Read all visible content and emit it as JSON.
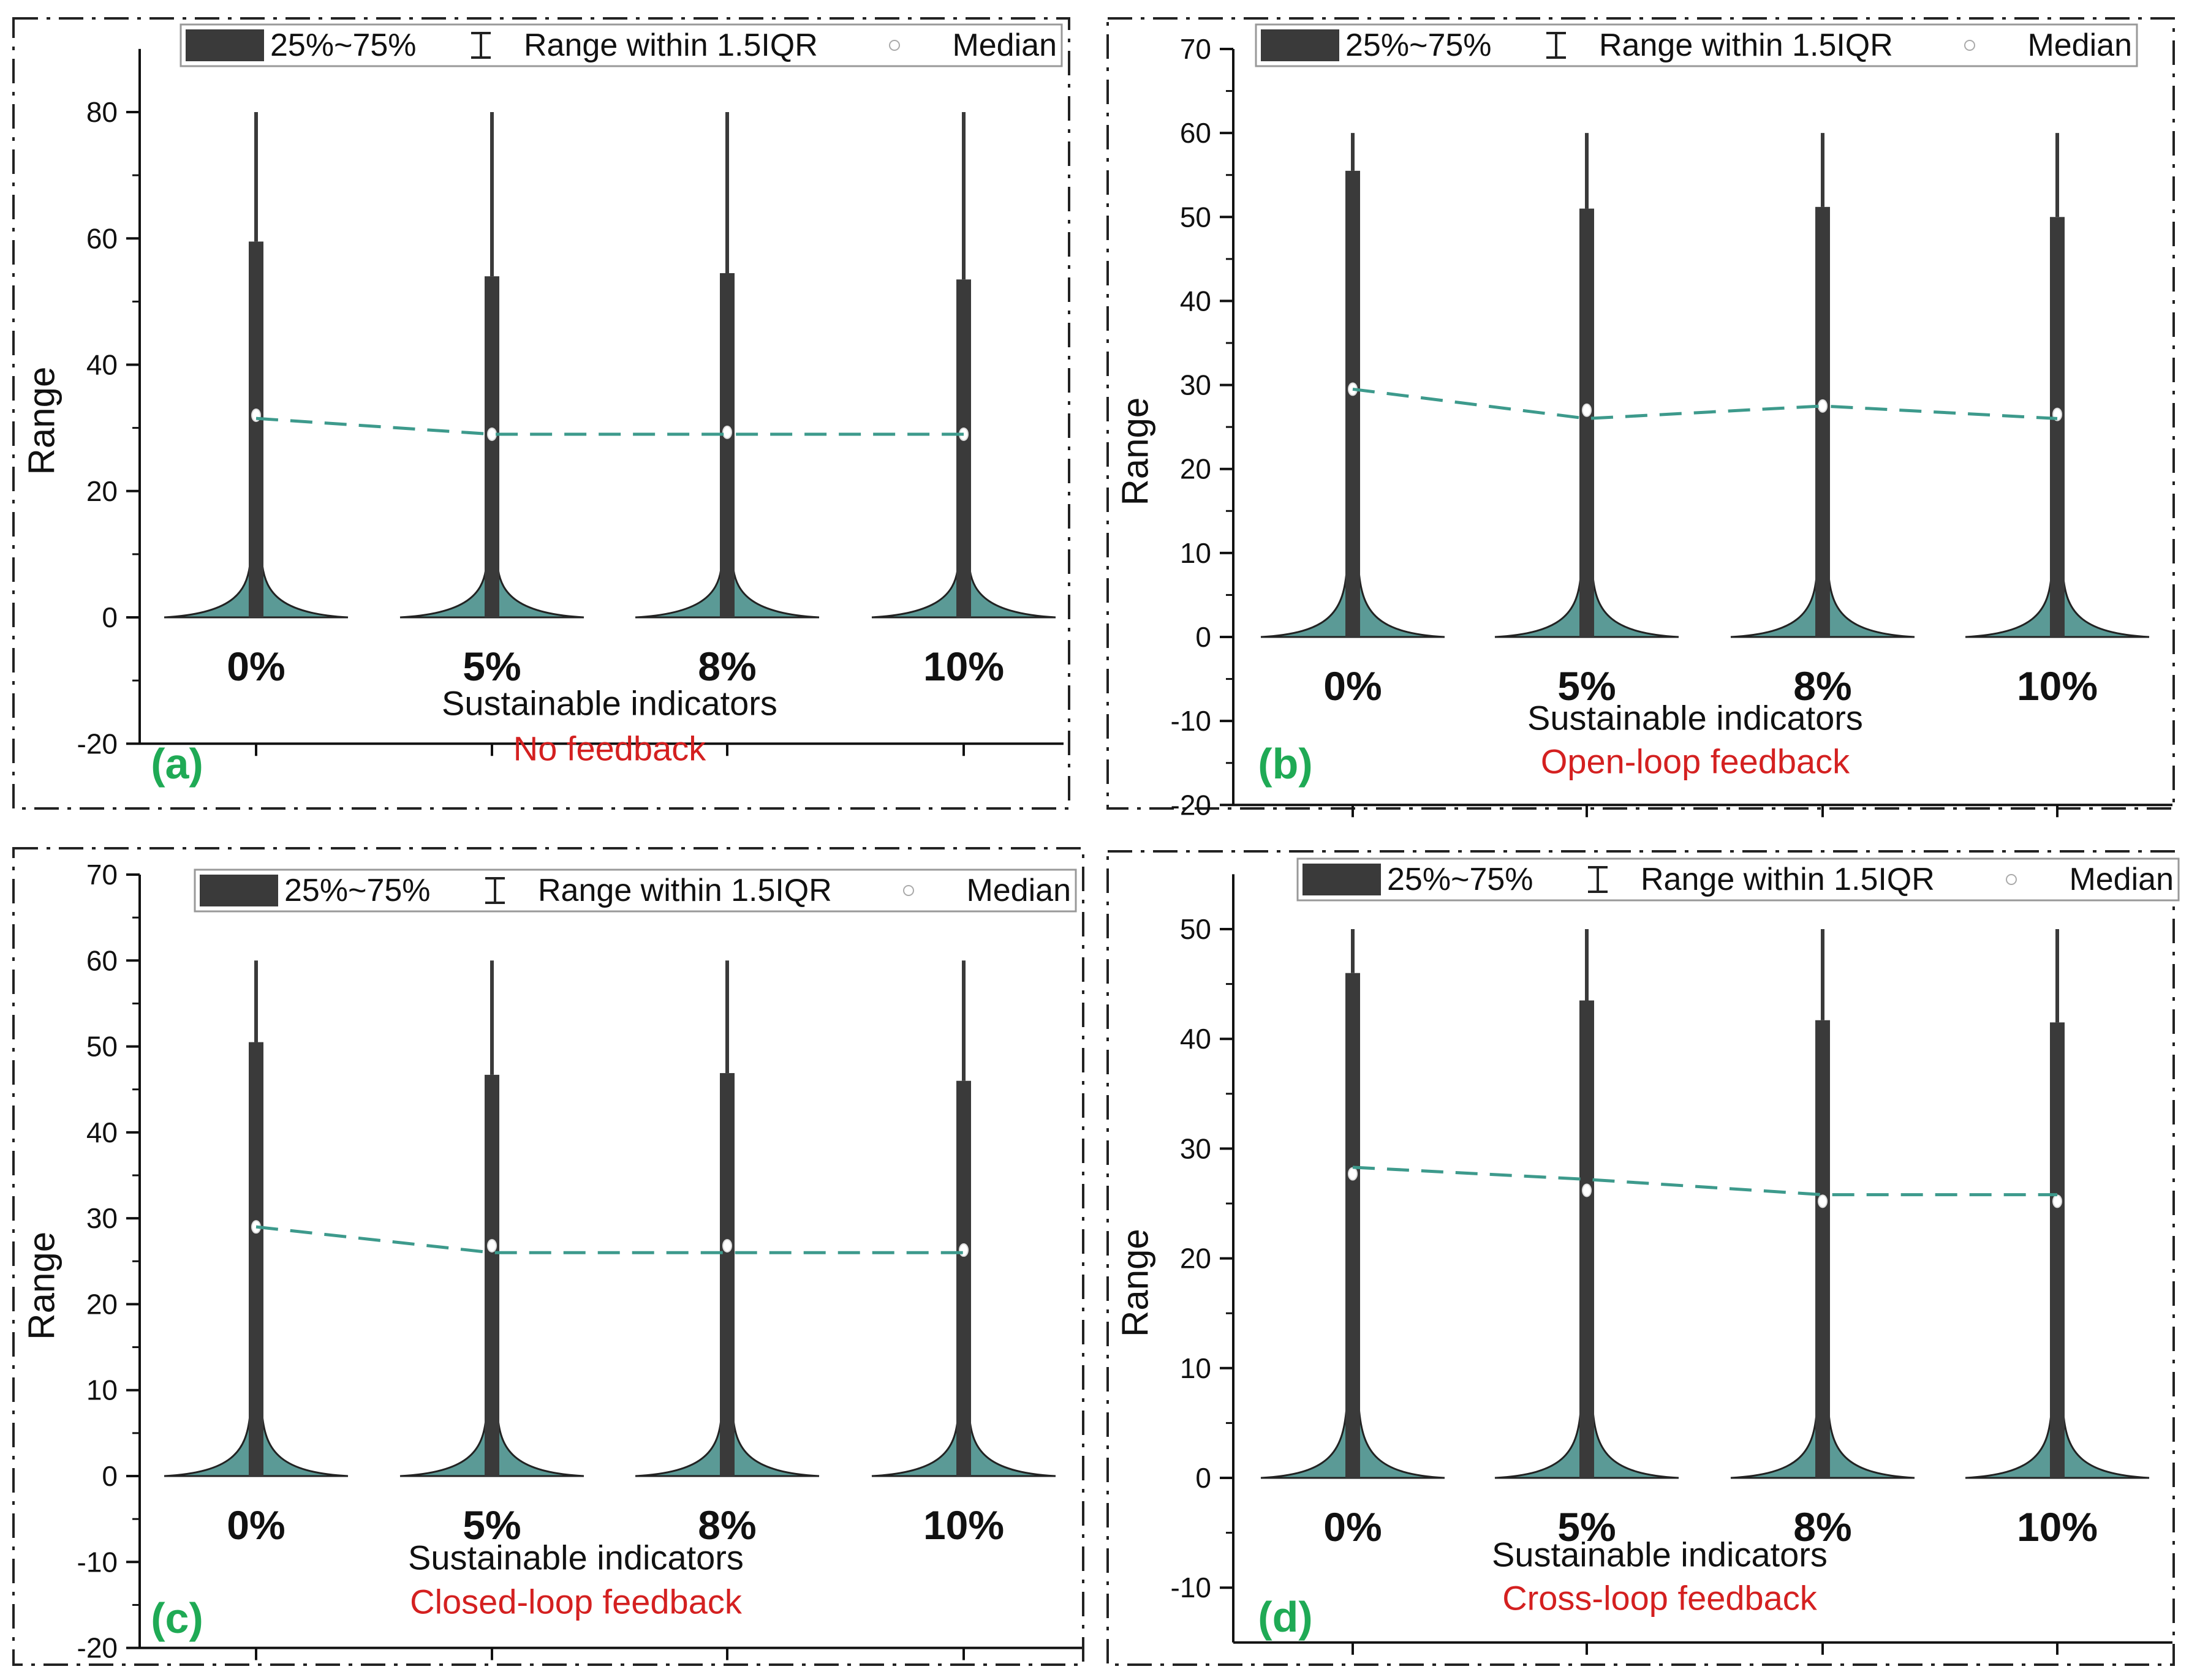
{
  "figure": {
    "x_label": "Sustainable indicators",
    "y_label": "Range",
    "categories": [
      "0%",
      "5%",
      "8%",
      "10%"
    ],
    "legend": {
      "iqr": "25%~75%",
      "whisker": "Range within 1.5IQR",
      "median": "Median"
    },
    "colors": {
      "body": "#3a3a3a",
      "teal": "#3d9a8c",
      "fill": "#5b9a96",
      "caption": "#d42020",
      "label": "#1faa55"
    }
  },
  "chart_data": [
    {
      "type": "violin",
      "panel": "(a)",
      "caption": "No feedback",
      "categories": [
        "0%",
        "5%",
        "8%",
        "10%"
      ],
      "max": [
        80,
        80,
        80,
        80
      ],
      "q3": [
        59.5,
        54,
        54.5,
        53.5
      ],
      "median": [
        32,
        29,
        29.3,
        29
      ],
      "mean_line": [
        31.5,
        29,
        29,
        29
      ],
      "min": [
        0,
        0,
        0,
        0
      ],
      "ylim": [
        -20,
        90
      ],
      "yticks": [
        -20,
        0,
        20,
        40,
        60,
        80
      ],
      "xlabel": "Sustainable indicators",
      "ylabel": "Range"
    },
    {
      "type": "violin",
      "panel": "(b)",
      "caption": "Open-loop feedback",
      "categories": [
        "0%",
        "5%",
        "8%",
        "10%"
      ],
      "max": [
        60,
        60,
        60,
        60
      ],
      "q3": [
        55.5,
        51,
        51.2,
        50
      ],
      "median": [
        29.5,
        27,
        27.5,
        26.5
      ],
      "mean_line": [
        29.5,
        26,
        27.5,
        26
      ],
      "min": [
        0,
        0,
        0,
        0
      ],
      "ylim": [
        -20,
        70
      ],
      "yticks": [
        -20,
        -10,
        0,
        10,
        20,
        30,
        40,
        50,
        60,
        70
      ],
      "xlabel": "Sustainable indicators",
      "ylabel": "Range"
    },
    {
      "type": "violin",
      "panel": "(c)",
      "caption": "Closed-loop feedback",
      "categories": [
        "0%",
        "5%",
        "8%",
        "10%"
      ],
      "max": [
        60,
        60,
        60,
        60
      ],
      "q3": [
        50.5,
        46.7,
        46.9,
        46
      ],
      "median": [
        29,
        26.8,
        26.8,
        26.3
      ],
      "mean_line": [
        29,
        26,
        26,
        26
      ],
      "min": [
        0,
        0,
        0,
        0
      ],
      "ylim": [
        -20,
        70
      ],
      "yticks": [
        -20,
        -10,
        0,
        10,
        20,
        30,
        40,
        50,
        60,
        70
      ],
      "xlabel": "Sustainable indicators",
      "ylabel": "Range"
    },
    {
      "type": "violin",
      "panel": "(d)",
      "caption": "Cross-loop feedback",
      "categories": [
        "0%",
        "5%",
        "8%",
        "10%"
      ],
      "max": [
        50,
        50,
        50,
        50
      ],
      "q3": [
        46,
        43.5,
        41.7,
        41.5
      ],
      "median": [
        27.7,
        26.2,
        25.2,
        25.2
      ],
      "mean_line": [
        28.3,
        27.2,
        25.8,
        25.8
      ],
      "min": [
        0,
        0,
        0,
        0
      ],
      "ylim": [
        -15,
        55
      ],
      "yticks": [
        -10,
        0,
        10,
        20,
        30,
        40,
        50
      ],
      "xlabel": "Sustainable indicators",
      "ylabel": "Range"
    }
  ]
}
